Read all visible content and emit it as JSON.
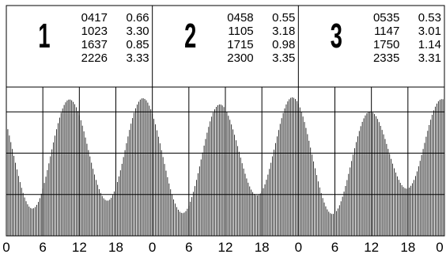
{
  "chart_data": {
    "type": "bar",
    "x_unit_hours": true,
    "days": [
      {
        "day_number": "1",
        "tides": [
          {
            "time": "0417",
            "height": "0.66"
          },
          {
            "time": "1023",
            "height": "3.30"
          },
          {
            "time": "1637",
            "height": "0.85"
          },
          {
            "time": "2226",
            "height": "3.33"
          }
        ]
      },
      {
        "day_number": "2",
        "tides": [
          {
            "time": "0458",
            "height": "0.55"
          },
          {
            "time": "1105",
            "height": "3.18"
          },
          {
            "time": "1715",
            "height": "0.98"
          },
          {
            "time": "2300",
            "height": "3.35"
          }
        ]
      },
      {
        "day_number": "3",
        "tides": [
          {
            "time": "0535",
            "height": "0.53"
          },
          {
            "time": "1147",
            "height": "3.01"
          },
          {
            "time": "1750",
            "height": "1.14"
          },
          {
            "time": "2335",
            "height": "3.31"
          }
        ]
      }
    ],
    "x_tick_labels": [
      "0",
      "6",
      "12",
      "18",
      "0",
      "6",
      "12",
      "18",
      "0",
      "6",
      "12",
      "18",
      "0"
    ],
    "xlim": [
      0,
      72
    ],
    "ylim": [
      0,
      3.6
    ],
    "grid": true,
    "colors": {
      "bars": "#000000",
      "grid": "#000000",
      "background": "#ffffff"
    }
  }
}
